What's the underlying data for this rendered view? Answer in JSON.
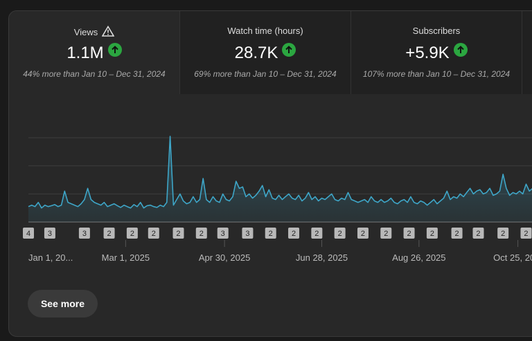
{
  "metrics": [
    {
      "label": "Views",
      "value": "1.1M",
      "comparison": "44% more than Jan 10 – Dec 31, 2024"
    },
    {
      "label": "Watch time (hours)",
      "value": "28.7K",
      "comparison": "69% more than Jan 10 – Dec 31, 2024"
    },
    {
      "label": "Subscribers",
      "value": "+5.9K",
      "comparison": "107% more than Jan 10 – Dec 31, 2024"
    }
  ],
  "chart_data": {
    "type": "area",
    "color": "#3ea6c8",
    "xlim": [
      0,
      306
    ],
    "xticks": [
      {
        "value": 0,
        "label": "Jan 1, 20..."
      },
      {
        "value": 59,
        "label": "Mar 1, 2025"
      },
      {
        "value": 119,
        "label": "Apr 30, 2025"
      },
      {
        "value": 178,
        "label": "Jun 28, 2025"
      },
      {
        "value": 237,
        "label": "Aug 26, 2025"
      },
      {
        "value": 297,
        "label": "Oct 25, 20..."
      }
    ],
    "ylim": [
      0,
      3.2
    ],
    "grid": [
      0,
      1,
      2,
      3
    ],
    "values": [
      0.55,
      0.6,
      0.55,
      0.7,
      0.5,
      0.6,
      0.55,
      0.58,
      0.62,
      0.55,
      0.6,
      1.1,
      0.7,
      0.65,
      0.6,
      0.55,
      0.65,
      0.8,
      1.2,
      0.8,
      0.7,
      0.65,
      0.6,
      0.7,
      0.55,
      0.6,
      0.65,
      0.58,
      0.52,
      0.6,
      0.55,
      0.5,
      0.62,
      0.55,
      0.7,
      0.5,
      0.58,
      0.6,
      0.55,
      0.52,
      0.6,
      0.55,
      0.7,
      3.05,
      0.6,
      0.8,
      1.0,
      0.75,
      0.65,
      0.7,
      0.9,
      0.7,
      0.8,
      1.55,
      0.8,
      0.7,
      0.9,
      0.75,
      0.7,
      1.0,
      0.8,
      0.75,
      0.9,
      1.45,
      1.2,
      1.25,
      0.9,
      1.0,
      0.85,
      0.95,
      1.1,
      1.3,
      0.9,
      1.15,
      0.85,
      0.8,
      0.95,
      0.8,
      0.9,
      1.0,
      0.85,
      0.8,
      0.95,
      0.75,
      0.85,
      1.05,
      0.8,
      0.9,
      0.75,
      0.85,
      0.8,
      0.9,
      1.0,
      0.8,
      0.75,
      0.85,
      0.8,
      1.05,
      0.8,
      0.75,
      0.7,
      0.75,
      0.8,
      0.7,
      0.9,
      0.75,
      0.7,
      0.8,
      0.7,
      0.75,
      0.85,
      0.7,
      0.65,
      0.75,
      0.8,
      0.7,
      0.9,
      0.7,
      0.65,
      0.75,
      0.7,
      0.6,
      0.7,
      0.8,
      0.65,
      0.75,
      0.85,
      1.1,
      0.8,
      0.9,
      0.85,
      1.0,
      0.9,
      1.05,
      1.2,
      1.0,
      1.1,
      1.15,
      1.0,
      1.05,
      1.2,
      0.95,
      1.0,
      1.1,
      1.7,
      1.2,
      0.95,
      1.05,
      1.0,
      1.1,
      1.0,
      1.35,
      1.1,
      1.2
    ],
    "annotations": [
      {
        "x": 0,
        "count": 4
      },
      {
        "x": 13,
        "count": 3
      },
      {
        "x": 34,
        "count": 3
      },
      {
        "x": 49,
        "count": 2
      },
      {
        "x": 63,
        "count": 2
      },
      {
        "x": 76,
        "count": 2
      },
      {
        "x": 91,
        "count": 2
      },
      {
        "x": 105,
        "count": 2
      },
      {
        "x": 118,
        "count": 3
      },
      {
        "x": 133,
        "count": 3
      },
      {
        "x": 147,
        "count": 2
      },
      {
        "x": 161,
        "count": 2
      },
      {
        "x": 175,
        "count": 2
      },
      {
        "x": 189,
        "count": 2
      },
      {
        "x": 203,
        "count": 2
      },
      {
        "x": 217,
        "count": 2
      },
      {
        "x": 231,
        "count": 2
      },
      {
        "x": 245,
        "count": 2
      },
      {
        "x": 260,
        "count": 2
      },
      {
        "x": 273,
        "count": 2
      },
      {
        "x": 288,
        "count": 2
      },
      {
        "x": 302,
        "count": 2
      }
    ]
  },
  "button": "See more"
}
